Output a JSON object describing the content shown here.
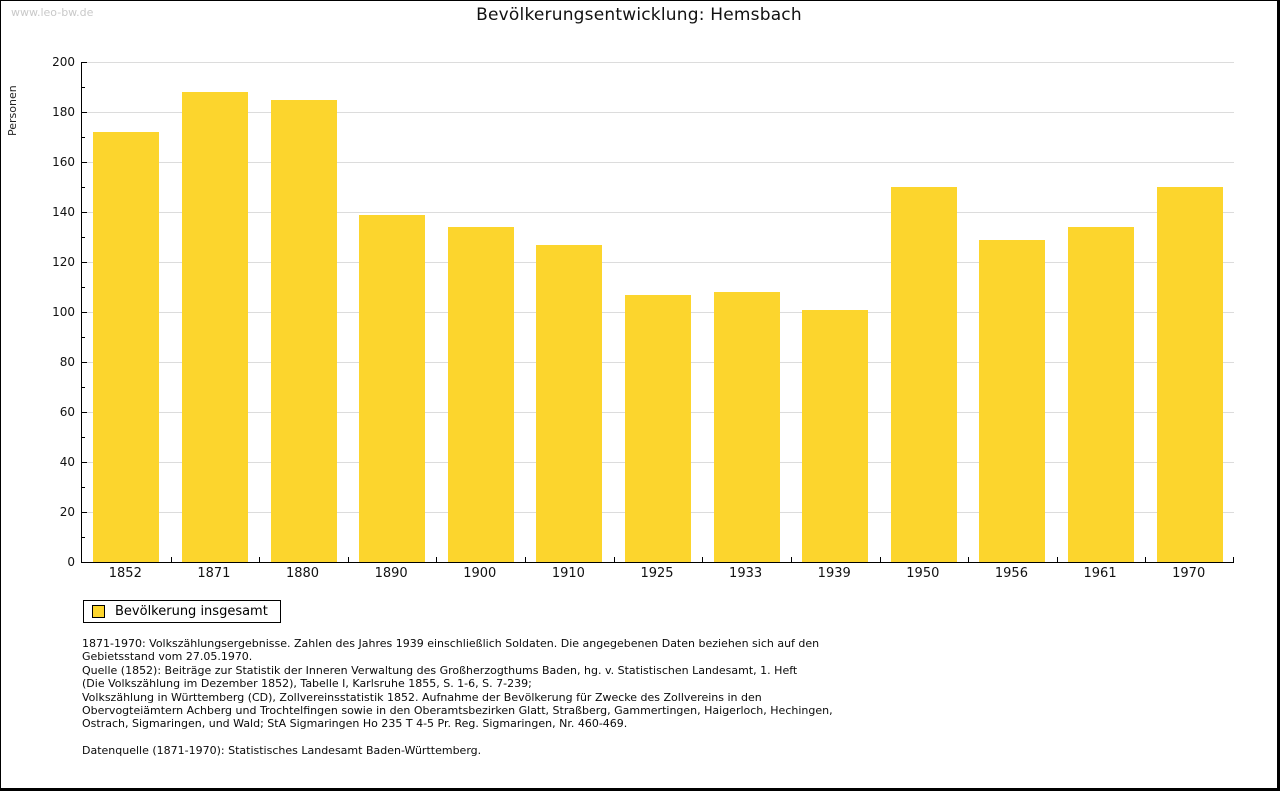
{
  "page": {
    "watermark": "www.leo-bw.de"
  },
  "chart_data": {
    "type": "bar",
    "title": "Bevölkerungsentwicklung: Hemsbach",
    "xlabel": "",
    "ylabel": "Personen",
    "categories": [
      "1852",
      "1871",
      "1880",
      "1890",
      "1900",
      "1910",
      "1925",
      "1933",
      "1939",
      "1950",
      "1956",
      "1961",
      "1970"
    ],
    "values": [
      172,
      188,
      185,
      139,
      134,
      127,
      107,
      108,
      101,
      150,
      129,
      134,
      150
    ],
    "ylim": [
      0,
      200
    ],
    "ytick_step": 20,
    "y_minor_tick_step": 10,
    "grid": true,
    "bar_color": "#FCD52D",
    "gridline_color": "#dcdcdc",
    "axis_color": "#000000",
    "legend_position": "bottom-left",
    "legend_entries": [
      "Bevölkerung insgesamt"
    ]
  },
  "legend": {
    "label": "Bevölkerung insgesamt"
  },
  "footer": {
    "lines": [
      "1871-1970: Volkszählungsergebnisse. Zahlen des Jahres 1939 einschließlich Soldaten. Die angegebenen Daten beziehen sich auf den",
      "Gebietsstand vom 27.05.1970.",
      "Quelle (1852): Beiträge zur Statistik der Inneren Verwaltung des Großherzogthums Baden, hg. v. Statistischen Landesamt, 1. Heft",
      "(Die Volkszählung im Dezember 1852), Tabelle I, Karlsruhe 1855, S. 1-6, S. 7-239;",
      "Volkszählung in Württemberg (CD), Zollvereinsstatistik 1852. Aufnahme der Bevölkerung für Zwecke des Zollvereins in den",
      "Obervogteiämtern Achberg und Trochtelfingen sowie in den Oberamtsbezirken Glatt, Straßberg, Gammertingen, Haigerloch, Hechingen,",
      "Ostrach, Sigmaringen, und Wald; StA Sigmaringen Ho 235 T 4-5 Pr. Reg. Sigmaringen, Nr. 460-469."
    ],
    "datasource": "Datenquelle (1871-1970): Statistisches Landesamt Baden-Württemberg."
  }
}
